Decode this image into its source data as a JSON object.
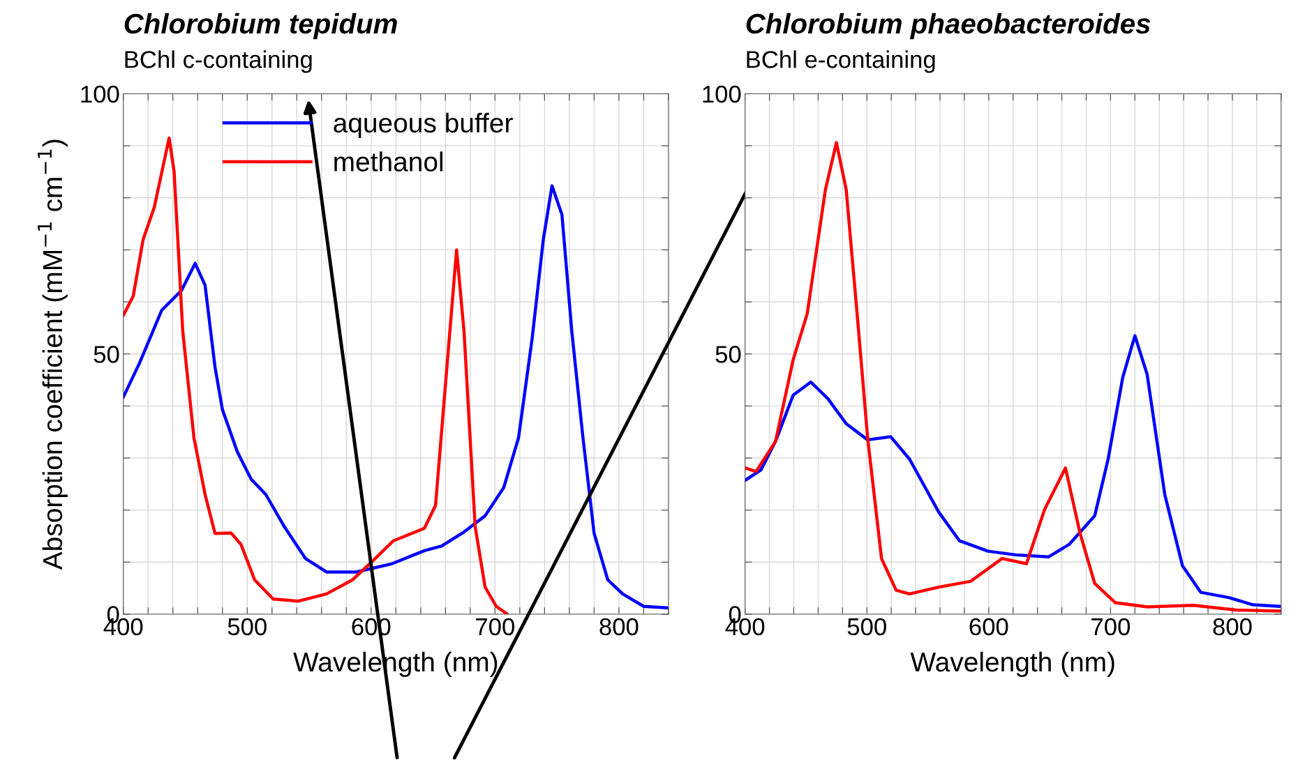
{
  "chart_data": [
    {
      "type": "line",
      "title": "Chlorobium tepidum",
      "subtitle": "BChl c-containing",
      "xlabel": "Wavelength (nm)",
      "ylabel": "Absorption coefficient (mM$^{−1}$ cm$^{−1}$)",
      "xlim": [
        400,
        840
      ],
      "ylim": [
        0,
        100
      ],
      "xticks": [
        400,
        {
          "value": 420,
          "label": null
        },
        {
          "value": 440,
          "label": null
        },
        {
          "value": 460,
          "label": null
        },
        {
          "value": 480,
          "label": null
        },
        500,
        {
          "value": 520,
          "label": null
        },
        {
          "value": 540,
          "label": null
        },
        {
          "value": 560,
          "label": null
        },
        {
          "value": 580,
          "label": null
        },
        600,
        {
          "value": 620,
          "label": null
        },
        {
          "value": 640,
          "label": null
        },
        {
          "value": 660,
          "label": null
        },
        {
          "value": 680,
          "label": null
        },
        700,
        {
          "value": 720,
          "label": null
        },
        {
          "value": 740,
          "label": null
        },
        {
          "value": 760,
          "label": null
        },
        {
          "value": 780,
          "label": null
        },
        800,
        {
          "value": 820,
          "label": null
        },
        {
          "value": 840,
          "label": null
        }
      ],
      "yticks": [
        0,
        {
          "value": 10,
          "label": null
        },
        {
          "value": 20,
          "label": null
        },
        {
          "value": 30,
          "label": null
        },
        {
          "value": 40,
          "label": null
        },
        50,
        {
          "value": 60,
          "label": null
        },
        {
          "value": 70,
          "label": null
        },
        {
          "value": 80,
          "label": null
        },
        {
          "value": 90,
          "label": null
        },
        100
      ],
      "grid": true,
      "legend": "top left",
      "series": [
        {
          "name": "aqueous buffer",
          "color": "#0000ff",
          "x": [
            400,
            413,
            425,
            431,
            447,
            458,
            466,
            474,
            480,
            492,
            503,
            515,
            530,
            547,
            564,
            588,
            617,
            643,
            657,
            675,
            692,
            707,
            719,
            730,
            739,
            746,
            754,
            762,
            771,
            780,
            791,
            803,
            820,
            840
          ],
          "values": [
            41.7,
            48.2,
            55,
            58.4,
            62.2,
            67.4,
            63.2,
            47.5,
            39.3,
            31.2,
            26,
            23,
            16.8,
            10.7,
            8.1,
            8.1,
            9.7,
            12.2,
            13.1,
            15.8,
            18.9,
            24.3,
            33.9,
            53,
            72,
            82.3,
            76.8,
            54.3,
            33.9,
            15.5,
            6.6,
            3.9,
            1.5,
            1.2
          ]
        },
        {
          "name": "methanol",
          "color": "#ff0000",
          "x": [
            400,
            408,
            416,
            425,
            437,
            441,
            448,
            457,
            466,
            474,
            487,
            495,
            506,
            521,
            541,
            564,
            585,
            602,
            618,
            643,
            652,
            660,
            669,
            675,
            684,
            692,
            701,
            710
          ],
          "values": [
            57.4,
            61.1,
            72,
            78.2,
            91.5,
            85,
            54.3,
            33.9,
            23,
            15.5,
            15.6,
            13.4,
            6.6,
            2.9,
            2.5,
            3.9,
            6.6,
            10.4,
            14.1,
            16.5,
            20.9,
            44.1,
            70,
            54.3,
            16.8,
            5.2,
            1.5,
            0
          ]
        }
      ]
    },
    {
      "type": "line",
      "title": "Chlorobium phaeobacteroides",
      "subtitle": "BChl e-containing",
      "xlabel": "Wavelength (nm)",
      "xlim": [
        400,
        840
      ],
      "ylim": [
        0,
        100
      ],
      "xticks": [
        400,
        {
          "value": 420,
          "label": null
        },
        {
          "value": 440,
          "label": null
        },
        {
          "value": 460,
          "label": null
        },
        {
          "value": 480,
          "label": null
        },
        500,
        {
          "value": 520,
          "label": null
        },
        {
          "value": 540,
          "label": null
        },
        {
          "value": 560,
          "label": null
        },
        {
          "value": 580,
          "label": null
        },
        600,
        {
          "value": 620,
          "label": null
        },
        {
          "value": 640,
          "label": null
        },
        {
          "value": 660,
          "label": null
        },
        {
          "value": 680,
          "label": null
        },
        700,
        {
          "value": 720,
          "label": null
        },
        {
          "value": 740,
          "label": null
        },
        {
          "value": 760,
          "label": null
        },
        {
          "value": 780,
          "label": null
        },
        800,
        {
          "value": 820,
          "label": null
        },
        {
          "value": 840,
          "label": null
        }
      ],
      "yticks": [
        0,
        {
          "value": 10,
          "label": null
        },
        {
          "value": 20,
          "label": null
        },
        {
          "value": 30,
          "label": null
        },
        {
          "value": 40,
          "label": null
        },
        50,
        {
          "value": 60,
          "label": null
        },
        {
          "value": 70,
          "label": null
        },
        {
          "value": 80,
          "label": null
        },
        {
          "value": 90,
          "label": null
        },
        100
      ],
      "grid": true,
      "series": [
        {
          "color": "#0000ff",
          "x": [
            400,
            413,
            425,
            439.5,
            454,
            468,
            483,
            500.6,
            519.5,
            535,
            559,
            576,
            599.5,
            622,
            649,
            666,
            687,
            698,
            710,
            720,
            730,
            744.5,
            759,
            774,
            797,
            817,
            839
          ],
          "values": [
            25.7,
            27.7,
            33.2,
            42.1,
            44.6,
            41.4,
            36.6,
            33.5,
            34.1,
            29.8,
            19.6,
            14.1,
            12.1,
            11.4,
            11,
            13.4,
            18.9,
            29.8,
            45.5,
            53.5,
            46.1,
            23,
            9.3,
            4.2,
            3.2,
            1.8,
            1.5
          ]
        },
        {
          "color": "#ff0000",
          "x": [
            400,
            409,
            425,
            439.5,
            451,
            466,
            475,
            483,
            492,
            500.6,
            512,
            524,
            535,
            559,
            585,
            611,
            631,
            646,
            663,
            675,
            687,
            704,
            730,
            768,
            803,
            839
          ],
          "values": [
            28.1,
            27.4,
            33.2,
            48.9,
            57.7,
            81.6,
            90.6,
            81.6,
            57.7,
            33.9,
            10.7,
            4.6,
            3.9,
            5.2,
            6.3,
            10.7,
            9.7,
            20.2,
            28.1,
            15.5,
            5.9,
            2.2,
            1.4,
            1.7,
            0.8,
            0.6
          ]
        }
      ]
    }
  ]
}
